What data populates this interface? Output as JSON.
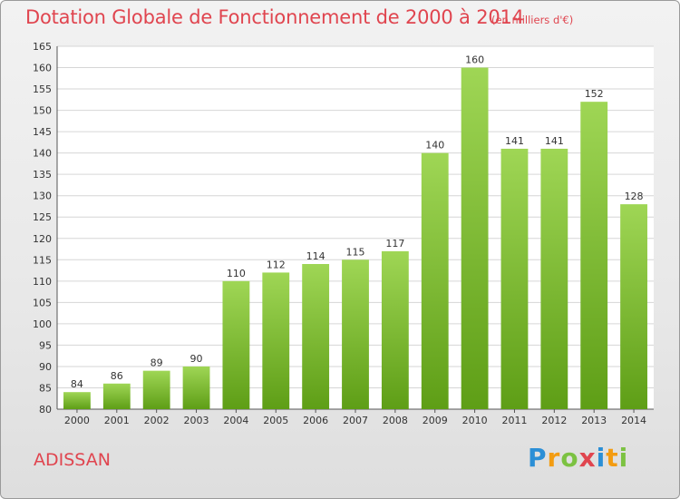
{
  "header": {
    "title": "Dotation Globale de Fonctionnement de 2000 à 2014",
    "subtitle": "(en milliers d'€)"
  },
  "footer": {
    "commune": "ADISSAN",
    "logo_letters": [
      "P",
      "r",
      "o",
      "x",
      "i",
      "t",
      "i"
    ],
    "logo_colors": [
      "#2b8fd6",
      "#f39c12",
      "#7cc242",
      "#e0454f",
      "#2b8fd6",
      "#f39c12",
      "#7cc242"
    ]
  },
  "colors": {
    "bar_light": "#9fd655",
    "bar_dark": "#5e9e16",
    "title": "#e0454f"
  },
  "chart_data": {
    "type": "bar",
    "title": "Dotation Globale de Fonctionnement de 2000 à 2014",
    "subtitle": "(en milliers d'€)",
    "xlabel": "",
    "ylabel": "",
    "categories": [
      "2000",
      "2001",
      "2002",
      "2003",
      "2004",
      "2005",
      "2006",
      "2007",
      "2008",
      "2009",
      "2010",
      "2011",
      "2012",
      "2013",
      "2014"
    ],
    "values": [
      84,
      86,
      89,
      90,
      110,
      112,
      114,
      115,
      117,
      140,
      160,
      141,
      141,
      152,
      128
    ],
    "ylim": [
      80,
      165
    ],
    "yticks": [
      80,
      85,
      90,
      95,
      100,
      105,
      110,
      115,
      120,
      125,
      130,
      135,
      140,
      145,
      150,
      155,
      160,
      165
    ],
    "grid": true,
    "legend": "none"
  }
}
